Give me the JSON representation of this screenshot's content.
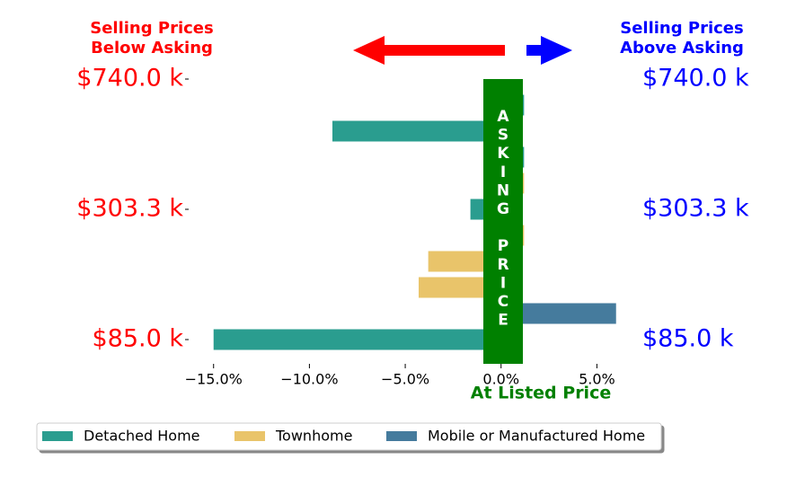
{
  "chart_data": {
    "type": "bar",
    "orientation": "horizontal",
    "left_note": [
      "Selling Prices",
      "Below Asking"
    ],
    "right_note": [
      "Selling Prices",
      "Above Asking"
    ],
    "center_label": "ASKING PRICE",
    "x_label": "At Listed Price",
    "categories": [
      "$740.0 k",
      null,
      null,
      null,
      null,
      "$303.3 k",
      null,
      null,
      null,
      null,
      "$85.0 k"
    ],
    "series": [
      {
        "name": "Detached Home",
        "color": "#2a9d8f",
        "values": [
          null,
          1.2,
          -8.8,
          1.2,
          null,
          -1.6,
          null,
          null,
          null,
          null,
          -15.0
        ]
      },
      {
        "name": "Townhome",
        "color": "#e9c46a",
        "values": [
          null,
          null,
          null,
          null,
          1.2,
          null,
          1.2,
          -3.8,
          -4.3,
          null,
          null
        ]
      },
      {
        "name": "Mobile or Manufactured Home",
        "color": "#457b9d",
        "values": [
          null,
          null,
          null,
          null,
          null,
          null,
          null,
          null,
          null,
          6.0,
          null
        ]
      }
    ],
    "xlim": [
      -16.3,
      6.2
    ],
    "xticks": [
      {
        "value": -15,
        "label": "−15.0%"
      },
      {
        "value": -10,
        "label": "−10.0%"
      },
      {
        "value": -5,
        "label": "−5.0%"
      },
      {
        "value": 0,
        "label": "0.0%"
      },
      {
        "value": 5,
        "label": "5.0%"
      }
    ],
    "legend": "lower center"
  }
}
